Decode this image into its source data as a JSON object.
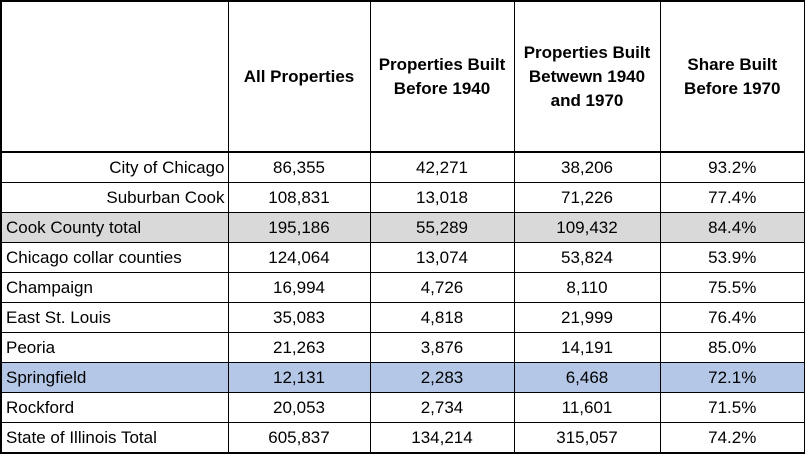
{
  "headers": [
    "",
    "All Properties",
    "Properties Built Before 1940",
    "Properties Built Betwewn 1940 and 1970",
    "Share Built Before 1970"
  ],
  "rows": [
    {
      "label": "City of Chicago",
      "all": "86,355",
      "before1940": "42,271",
      "between": "38,206",
      "share": "93.2%",
      "indent": true
    },
    {
      "label": "Suburban Cook",
      "all": "108,831",
      "before1940": "13,018",
      "between": "71,226",
      "share": "77.4%",
      "indent": true
    },
    {
      "label": "Cook County total",
      "all": "195,186",
      "before1940": "55,289",
      "between": "109,432",
      "share": "84.4%",
      "highlight": "#d9d9d9"
    },
    {
      "label": "Chicago collar counties",
      "all": "124,064",
      "before1940": "13,074",
      "between": "53,824",
      "share": "53.9%"
    },
    {
      "label": "Champaign",
      "all": "16,994",
      "before1940": "4,726",
      "between": "8,110",
      "share": "75.5%"
    },
    {
      "label": "East St. Louis",
      "all": "35,083",
      "before1940": "4,818",
      "between": "21,999",
      "share": "76.4%"
    },
    {
      "label": "Peoria",
      "all": "21,263",
      "before1940": "3,876",
      "between": "14,191",
      "share": "85.0%"
    },
    {
      "label": "Springfield",
      "all": "12,131",
      "before1940": "2,283",
      "between": "6,468",
      "share": "72.1%",
      "highlight": "#b4c7e7"
    },
    {
      "label": "Rockford",
      "all": "20,053",
      "before1940": "2,734",
      "between": "11,601",
      "share": "71.5%"
    },
    {
      "label": "State of Illinois Total",
      "all": "605,837",
      "before1940": "134,214",
      "between": "315,057",
      "share": "74.2%"
    }
  ]
}
